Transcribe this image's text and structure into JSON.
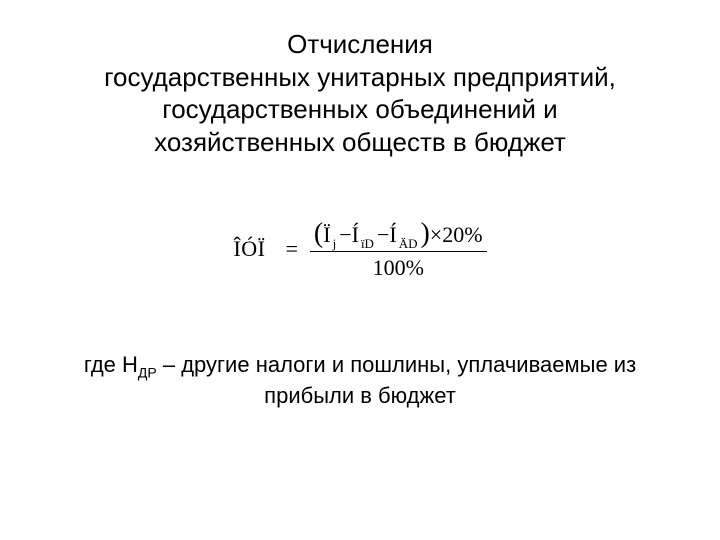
{
  "colors": {
    "bg": "#ffffff",
    "text": "#000000"
  },
  "title": {
    "line1": "Отчисления",
    "line2": "государственных унитарных предприятий,",
    "line3": "государственных объединений и",
    "line4": "хозяйственных обществ в бюджет",
    "fontsize": 26
  },
  "formula": {
    "lhs": "ÎÓÏ",
    "lparen": "(",
    "t1": "Ï",
    "s1": "j",
    "minus1": " − ",
    "t2": "Í",
    "s2": "ïD",
    "minus2": " − ",
    "t3": "Í",
    "s3": "ÄD",
    "rparen": ")",
    "mult": "×",
    "pct": "20%",
    "den": "100%",
    "fontsize": 22
  },
  "caption": {
    "prefix": "где Н",
    "sub": "ДР",
    "rest": " – другие налоги и пошлины, уплачиваемые из",
    "line2": "прибыли в бюджет",
    "fontsize": 22
  }
}
